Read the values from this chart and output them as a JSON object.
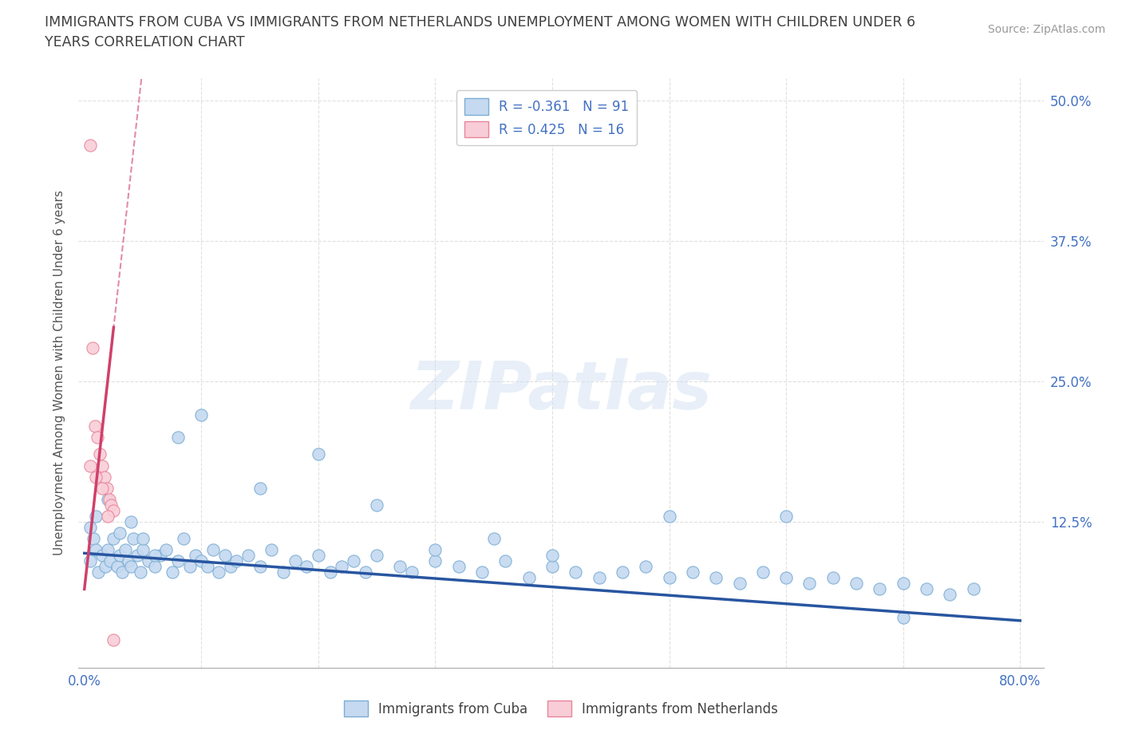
{
  "title_line1": "IMMIGRANTS FROM CUBA VS IMMIGRANTS FROM NETHERLANDS UNEMPLOYMENT AMONG WOMEN WITH CHILDREN UNDER 6",
  "title_line2": "YEARS CORRELATION CHART",
  "ylabel": "Unemployment Among Women with Children Under 6 years",
  "source": "Source: ZipAtlas.com",
  "watermark": "ZIPatlas",
  "xlim": [
    -0.005,
    0.82
  ],
  "ylim": [
    -0.005,
    0.52
  ],
  "x_ticks": [
    0.0,
    0.1,
    0.2,
    0.3,
    0.4,
    0.5,
    0.6,
    0.7,
    0.8
  ],
  "x_tick_labels": [
    "0.0%",
    "",
    "",
    "",
    "",
    "",
    "",
    "",
    "80.0%"
  ],
  "y_ticks": [
    0.0,
    0.125,
    0.25,
    0.375,
    0.5
  ],
  "y_tick_labels_right": [
    "",
    "12.5%",
    "25.0%",
    "37.5%",
    "50.0%"
  ],
  "legend1_label": "R = -0.361   N = 91",
  "legend2_label": "R = 0.425   N = 16",
  "cuba_fill": "#c5d9f0",
  "cuba_edge": "#7badd4",
  "netherlands_fill": "#f9cdd8",
  "netherlands_edge": "#e8859a",
  "trend_cuba_color": "#2855a0",
  "trend_netherlands_color": "#d0406a",
  "background_color": "#ffffff",
  "grid_color": "#e0e0e0",
  "title_color": "#404040",
  "axis_label_color": "#555555",
  "tick_color": "#4472c4",
  "cuba_trend_intercept": 0.097,
  "cuba_trend_slope": -0.075,
  "neth_trend_x0": 0.0,
  "neth_trend_y0": 0.065,
  "neth_trend_x1": 0.022,
  "neth_trend_y1": 0.27,
  "cuba_scatter_x": [
    0.005,
    0.008,
    0.01,
    0.012,
    0.015,
    0.018,
    0.02,
    0.022,
    0.025,
    0.028,
    0.03,
    0.032,
    0.035,
    0.038,
    0.04,
    0.042,
    0.045,
    0.048,
    0.05,
    0.055,
    0.06,
    0.065,
    0.07,
    0.075,
    0.08,
    0.085,
    0.09,
    0.095,
    0.1,
    0.105,
    0.11,
    0.115,
    0.12,
    0.125,
    0.13,
    0.14,
    0.15,
    0.16,
    0.17,
    0.18,
    0.19,
    0.2,
    0.21,
    0.22,
    0.23,
    0.24,
    0.25,
    0.27,
    0.28,
    0.3,
    0.32,
    0.34,
    0.36,
    0.38,
    0.4,
    0.42,
    0.44,
    0.46,
    0.48,
    0.5,
    0.52,
    0.54,
    0.56,
    0.58,
    0.6,
    0.62,
    0.64,
    0.66,
    0.68,
    0.7,
    0.72,
    0.74,
    0.76,
    0.005,
    0.01,
    0.02,
    0.03,
    0.04,
    0.05,
    0.06,
    0.08,
    0.1,
    0.15,
    0.2,
    0.25,
    0.3,
    0.35,
    0.4,
    0.5,
    0.6,
    0.7
  ],
  "cuba_scatter_y": [
    0.09,
    0.11,
    0.1,
    0.08,
    0.095,
    0.085,
    0.1,
    0.09,
    0.11,
    0.085,
    0.095,
    0.08,
    0.1,
    0.09,
    0.085,
    0.11,
    0.095,
    0.08,
    0.1,
    0.09,
    0.085,
    0.095,
    0.1,
    0.08,
    0.09,
    0.11,
    0.085,
    0.095,
    0.09,
    0.085,
    0.1,
    0.08,
    0.095,
    0.085,
    0.09,
    0.095,
    0.085,
    0.1,
    0.08,
    0.09,
    0.085,
    0.095,
    0.08,
    0.085,
    0.09,
    0.08,
    0.095,
    0.085,
    0.08,
    0.09,
    0.085,
    0.08,
    0.09,
    0.075,
    0.085,
    0.08,
    0.075,
    0.08,
    0.085,
    0.075,
    0.08,
    0.075,
    0.07,
    0.08,
    0.075,
    0.07,
    0.075,
    0.07,
    0.065,
    0.07,
    0.065,
    0.06,
    0.065,
    0.12,
    0.13,
    0.145,
    0.115,
    0.125,
    0.11,
    0.095,
    0.2,
    0.22,
    0.155,
    0.185,
    0.14,
    0.1,
    0.11,
    0.095,
    0.13,
    0.13,
    0.04
  ],
  "neth_scatter_x": [
    0.005,
    0.007,
    0.009,
    0.011,
    0.013,
    0.015,
    0.017,
    0.019,
    0.021,
    0.023,
    0.025,
    0.005,
    0.01,
    0.015,
    0.02,
    0.025
  ],
  "neth_scatter_y": [
    0.46,
    0.28,
    0.21,
    0.2,
    0.185,
    0.175,
    0.165,
    0.155,
    0.145,
    0.14,
    0.135,
    0.175,
    0.165,
    0.155,
    0.13,
    0.02
  ]
}
